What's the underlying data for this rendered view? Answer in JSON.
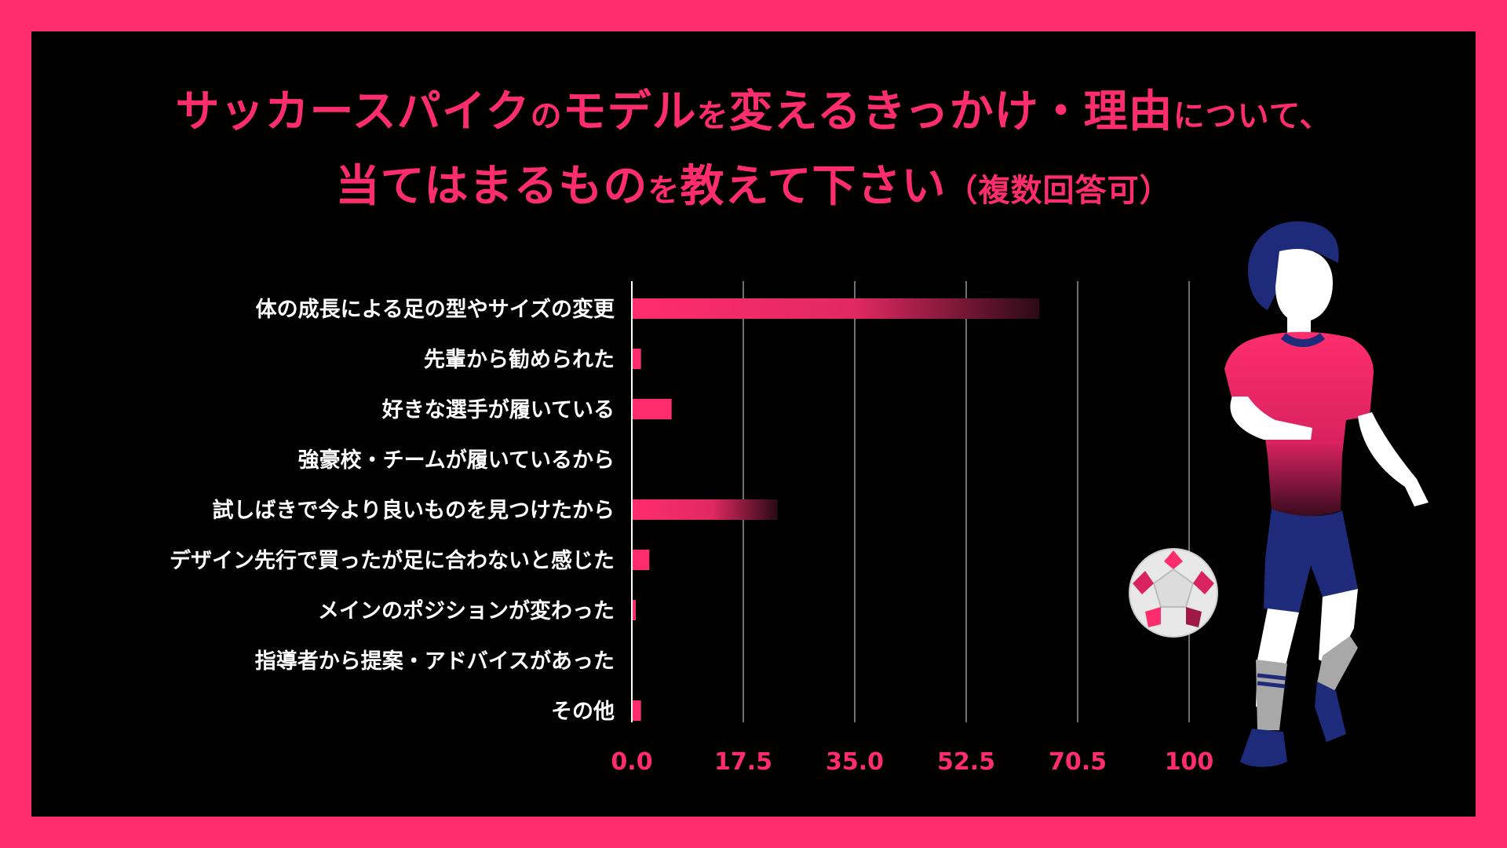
{
  "title": {
    "line1_a": "サッカースパイク",
    "line1_b": "の",
    "line1_c": "モデル",
    "line1_d": "を",
    "line1_e": "変えるきっかけ・理由",
    "line1_f": "について、",
    "line2_a": "当てはまるもの",
    "line2_b": "を",
    "line2_c": "教えて下さい",
    "line2_d": "（複数回答可）"
  },
  "colors": {
    "accent": "#ff2d6e",
    "background": "#000000",
    "frame": "#ff2d6e",
    "label": "#ffffff",
    "grid": "#ffffff"
  },
  "chart_data": {
    "type": "bar",
    "orientation": "horizontal",
    "categories": [
      "体の成長による足の型やサイズの変更",
      "先輩から勧められた",
      "好きな選手が履いている",
      "強豪校・チームが履いているから",
      "試しばきで今より良いものを見つけたから",
      "デザイン先行で買ったが足に合わないと感じた",
      "メインのポジションが変わった",
      "指導者から提案・アドバイスがあった",
      "その他"
    ],
    "values": [
      73,
      1.5,
      7,
      0,
      26,
      3,
      0.5,
      0,
      1.5
    ],
    "x_ticks": [
      "0.0",
      "17.5",
      "35.0",
      "52.5",
      "70.5",
      "100"
    ],
    "xlim": [
      0,
      100
    ],
    "grid": true
  }
}
